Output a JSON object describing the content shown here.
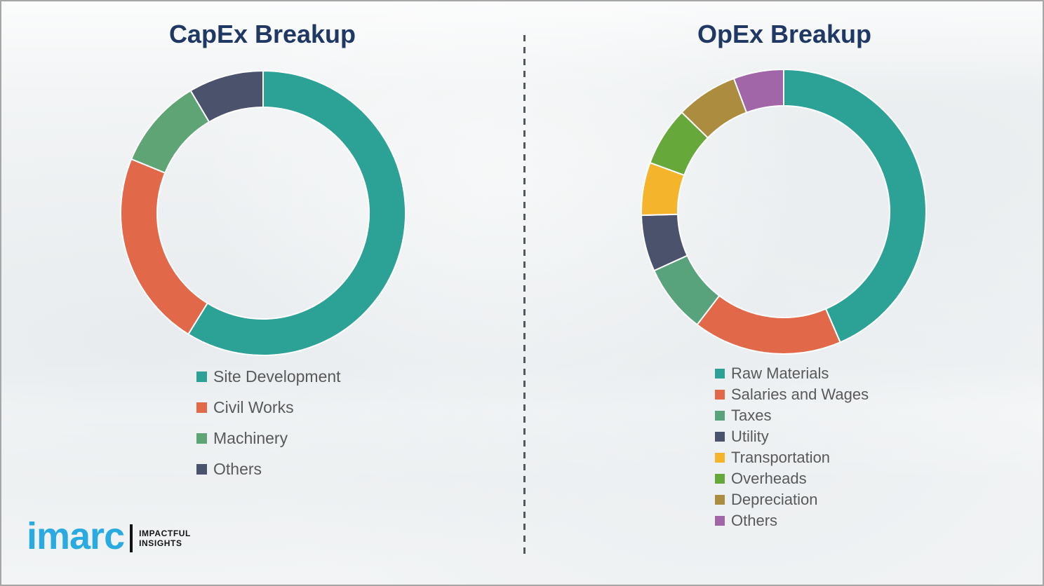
{
  "theme": {
    "background": "#F2F4F5",
    "border_color": "#A6A6A6",
    "title_color": "#1F3864",
    "legend_text_color": "#595959",
    "divider_color": "#53585C"
  },
  "chart_data": [
    {
      "type": "pie",
      "donut": true,
      "title": "CapEx Breakup",
      "labels": [
        "Site Development",
        "Civil Works",
        "Machinery",
        "Others"
      ],
      "values": [
        58.8,
        22.4,
        10.3,
        8.5
      ],
      "units": "percent (estimated from arc angles; no data labels shown)",
      "colors": [
        "#2BA295",
        "#E2684A",
        "#5FA475",
        "#4B526B"
      ],
      "start_angle_deg": 0,
      "direction": "clockwise",
      "legend_position": "below-left"
    },
    {
      "type": "pie",
      "donut": true,
      "title": "OpEx Breakup",
      "labels": [
        "Raw Materials",
        "Salaries and Wages",
        "Taxes",
        "Utility",
        "Transportation",
        "Overheads",
        "Depreciation",
        "Others"
      ],
      "values": [
        43.5,
        16.9,
        7.8,
        6.4,
        6.0,
        6.7,
        7.0,
        5.7
      ],
      "units": "percent (estimated from arc angles; no data labels shown)",
      "colors": [
        "#2BA295",
        "#E2684A",
        "#58A27C",
        "#4B526B",
        "#F4B42C",
        "#66A93A",
        "#AC8C3E",
        "#A066A8"
      ],
      "start_angle_deg": 0,
      "direction": "clockwise",
      "legend_position": "below-left"
    }
  ],
  "logo": {
    "brand": "imarc",
    "tagline_line1": "IMPACTFUL",
    "tagline_line2": "INSIGHTS",
    "brand_color": "#29ABE2"
  }
}
